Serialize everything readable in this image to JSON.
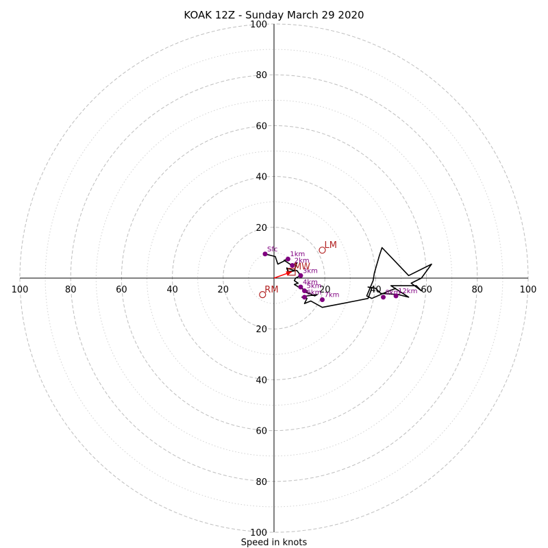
{
  "chart_data": {
    "type": "hodograph",
    "title": "KOAK 12Z - Sunday March 29 2020",
    "xlabel": "Speed in knots",
    "range": 100,
    "ring_step": 10,
    "tick_values": [
      20,
      40,
      60,
      80,
      100
    ],
    "grid": true,
    "hodograph_trace": [
      [
        -3.5,
        9.5
      ],
      [
        0.5,
        8.5
      ],
      [
        1.5,
        5.5
      ],
      [
        5.5,
        7.5
      ],
      [
        4,
        7
      ],
      [
        7,
        5
      ],
      [
        9,
        6
      ],
      [
        8,
        3
      ],
      [
        5,
        4
      ],
      [
        5.5,
        2.5
      ],
      [
        9,
        3
      ],
      [
        10.5,
        1
      ],
      [
        8.5,
        0
      ],
      [
        8,
        -1
      ],
      [
        9.5,
        -2
      ],
      [
        8,
        -2.5
      ],
      [
        10.5,
        -4
      ],
      [
        12,
        -4.5
      ],
      [
        13,
        -5
      ],
      [
        12,
        -5.5
      ],
      [
        14,
        -6
      ],
      [
        16,
        -7
      ],
      [
        17,
        -6.5
      ],
      [
        13,
        -7
      ],
      [
        11,
        -7.5
      ],
      [
        13,
        -8
      ],
      [
        12,
        -10
      ],
      [
        14.5,
        -9
      ],
      [
        19,
        -11.5
      ],
      [
        32,
        -9
      ],
      [
        37,
        -8
      ],
      [
        38.5,
        -4
      ],
      [
        37,
        -3.5
      ],
      [
        40,
        -4
      ],
      [
        42,
        -6
      ],
      [
        49,
        -6.5
      ],
      [
        53,
        -7.5
      ],
      [
        46,
        -3
      ],
      [
        56,
        -3
      ],
      [
        58,
        -5
      ],
      [
        54,
        -2
      ],
      [
        58,
        0
      ],
      [
        62,
        5.5
      ],
      [
        53,
        1
      ],
      [
        42.5,
        12
      ],
      [
        41.5,
        9
      ],
      [
        39.5,
        2
      ],
      [
        39,
        -1
      ],
      [
        36.5,
        -7
      ],
      [
        38.5,
        -8
      ],
      [
        43,
        -6
      ],
      [
        48,
        -4
      ]
    ],
    "height_points": [
      {
        "label": "Sfc",
        "u": -3.5,
        "v": 9.5
      },
      {
        "label": "1km",
        "u": 5.5,
        "v": 7.5
      },
      {
        "label": "2km",
        "u": 7.2,
        "v": 5.0
      },
      {
        "label": "3km",
        "u": 10.5,
        "v": 1.0
      },
      {
        "label": "4km",
        "u": 10.5,
        "v": -3.5
      },
      {
        "label": "5km",
        "u": 12.0,
        "v": -5.0
      },
      {
        "label": "6km",
        "u": 12.0,
        "v": -7.5
      },
      {
        "label": "7km",
        "u": 19.0,
        "v": -8.5
      },
      {
        "label": "8km",
        "u": 43.0,
        "v": -7.5
      },
      {
        "label": "12km",
        "u": 48.0,
        "v": -7.0
      }
    ],
    "storm_motion": [
      {
        "label": "LM",
        "u": 19.0,
        "v": 11.0
      },
      {
        "label": "RM",
        "u": -4.5,
        "v": -6.5
      },
      {
        "label": "MW",
        "u": 7.0,
        "v": 2.5
      }
    ],
    "shear_vector": {
      "u": 7.0,
      "v": 2.5
    }
  },
  "colors": {
    "trace": "#000000",
    "height_points": "#800080",
    "storm_motion": "#b22222",
    "shear_vector": "#ff0000",
    "grid_major": "#bdbdbd",
    "grid_minor": "#d0d0d0"
  }
}
